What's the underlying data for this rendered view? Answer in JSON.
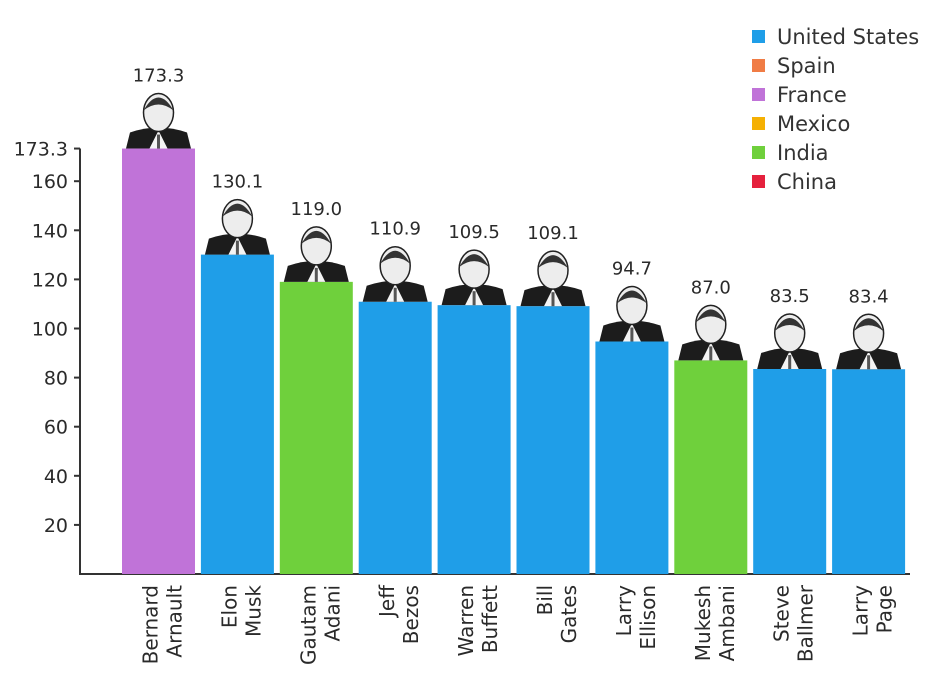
{
  "chart_data": {
    "type": "bar",
    "title": "",
    "xlabel": "",
    "ylabel": "",
    "ylim": [
      0,
      173.3
    ],
    "yticks": [
      20,
      40,
      60,
      80,
      100,
      120,
      140,
      160,
      173.3
    ],
    "ytick_labels": [
      "20",
      "40",
      "60",
      "80",
      "100",
      "120",
      "140",
      "160",
      "173.3"
    ],
    "categories": [
      [
        "Bernard",
        "Arnault"
      ],
      [
        "Elon",
        "Musk"
      ],
      [
        "Gautam",
        "Adani"
      ],
      [
        "Jeff",
        "Bezos"
      ],
      [
        "Warren",
        "Buffett"
      ],
      [
        "Bill",
        "Gates"
      ],
      [
        "Larry",
        "Ellison"
      ],
      [
        "Mukesh",
        "Ambani"
      ],
      [
        "Steve",
        "Ballmer"
      ],
      [
        "Larry",
        "Page"
      ]
    ],
    "values": [
      173.3,
      130.1,
      119.0,
      110.9,
      109.5,
      109.1,
      94.7,
      87.0,
      83.5,
      83.4
    ],
    "value_labels": [
      "173.3",
      "130.1",
      "119.0",
      "110.9",
      "109.5",
      "109.1",
      "94.7",
      "87.0",
      "83.5",
      "83.4"
    ],
    "countries": [
      "France",
      "United States",
      "India",
      "United States",
      "United States",
      "United States",
      "United States",
      "India",
      "United States",
      "United States"
    ],
    "legend": {
      "placement": "top-right",
      "entries": [
        {
          "label": "United States",
          "color": "#1f9ee8"
        },
        {
          "label": "Spain",
          "color": "#f07c45"
        },
        {
          "label": "France",
          "color": "#c073d8"
        },
        {
          "label": "Mexico",
          "color": "#f5b003"
        },
        {
          "label": "India",
          "color": "#6fd03c"
        },
        {
          "label": "China",
          "color": "#e5213d"
        }
      ]
    },
    "grid": false
  }
}
